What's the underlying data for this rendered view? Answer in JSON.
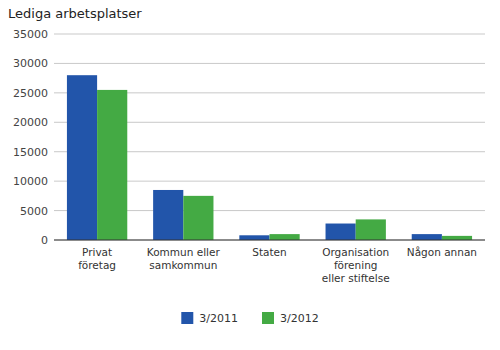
{
  "chart_data": {
    "type": "bar",
    "title": "Lediga arbetsplatser",
    "categories": [
      "Privat\nföretag",
      "Kommun eller\nsamkommun",
      "Staten",
      "Organisation\nförening\neller stiftelse",
      "Någon annan"
    ],
    "series": [
      {
        "name": "3/2011",
        "color": "#2255aa",
        "values": [
          28000,
          8500,
          800,
          2800,
          1000
        ]
      },
      {
        "name": "3/2012",
        "color": "#44aa44",
        "values": [
          25500,
          7500,
          1000,
          3500,
          700
        ]
      }
    ],
    "ylim": [
      0,
      35000
    ],
    "yticks": [
      0,
      5000,
      10000,
      15000,
      20000,
      25000,
      30000,
      35000
    ],
    "grid": true,
    "legend": "bottom"
  }
}
